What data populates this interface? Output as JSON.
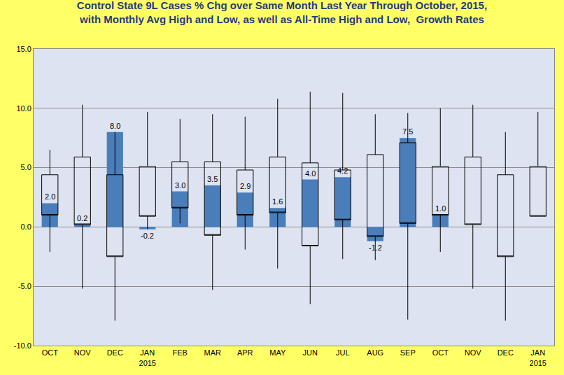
{
  "chart_data": {
    "type": "bar",
    "title": "Control State 9L Cases % Chg over Same Month Last Year Through October, 2015,\nwith Monthly Avg High and Low, as well as All-Time High and Low,  Growth Rates",
    "categories": [
      "OCT",
      "NOV",
      "DEC",
      "JAN 2015",
      "FEB",
      "MAR",
      "APR",
      "MAY",
      "JUN",
      "JUL",
      "AUG",
      "SEP",
      "OCT",
      "NOV",
      "DEC",
      "JAN 2015"
    ],
    "values": [
      2.0,
      0.2,
      8.0,
      -0.2,
      3.0,
      3.5,
      2.9,
      1.6,
      4.0,
      4.2,
      -1.2,
      7.5,
      1.0,
      null,
      null,
      null
    ],
    "value_labels": [
      "2.0",
      "0.2",
      "8.0",
      "-0.2",
      "3.0",
      "3.5",
      "2.9",
      "1.6",
      "4.0",
      "4.2",
      "-1.2",
      "7.5",
      "1.0",
      null,
      null,
      null
    ],
    "avg_high": [
      4.4,
      5.9,
      4.4,
      5.1,
      5.5,
      5.5,
      4.8,
      5.9,
      5.4,
      4.8,
      6.1,
      7.1,
      5.1,
      5.9,
      4.4,
      5.1
    ],
    "avg_low": [
      1.0,
      0.2,
      -2.5,
      0.9,
      1.6,
      -0.7,
      1.0,
      1.2,
      -1.6,
      0.6,
      -0.8,
      0.3,
      1.0,
      0.2,
      -2.5,
      0.9
    ],
    "all_time_high": [
      6.5,
      10.3,
      8.0,
      9.7,
      9.1,
      9.5,
      9.3,
      10.8,
      11.4,
      11.3,
      9.5,
      9.6,
      10.0,
      10.3,
      8.0,
      9.7
    ],
    "all_time_low": [
      -2.1,
      -5.2,
      -7.9,
      -0.2,
      0.3,
      -5.3,
      -1.9,
      -3.5,
      -6.5,
      -2.7,
      -2.8,
      -7.8,
      -2.1,
      -5.2,
      -7.9,
      0.9
    ],
    "color": "#4a7ebb",
    "data_labels": true,
    "grid": true,
    "ylim": [
      -10,
      15
    ],
    "yticks": [
      {
        "value": -10,
        "label": "-10.0"
      },
      {
        "value": -5,
        "label": "-5.0"
      },
      {
        "value": 0,
        "label": "0.0"
      },
      {
        "value": 5,
        "label": "5.0"
      },
      {
        "value": 10,
        "label": "10.0"
      },
      {
        "value": 15,
        "label": "15.0"
      }
    ]
  }
}
